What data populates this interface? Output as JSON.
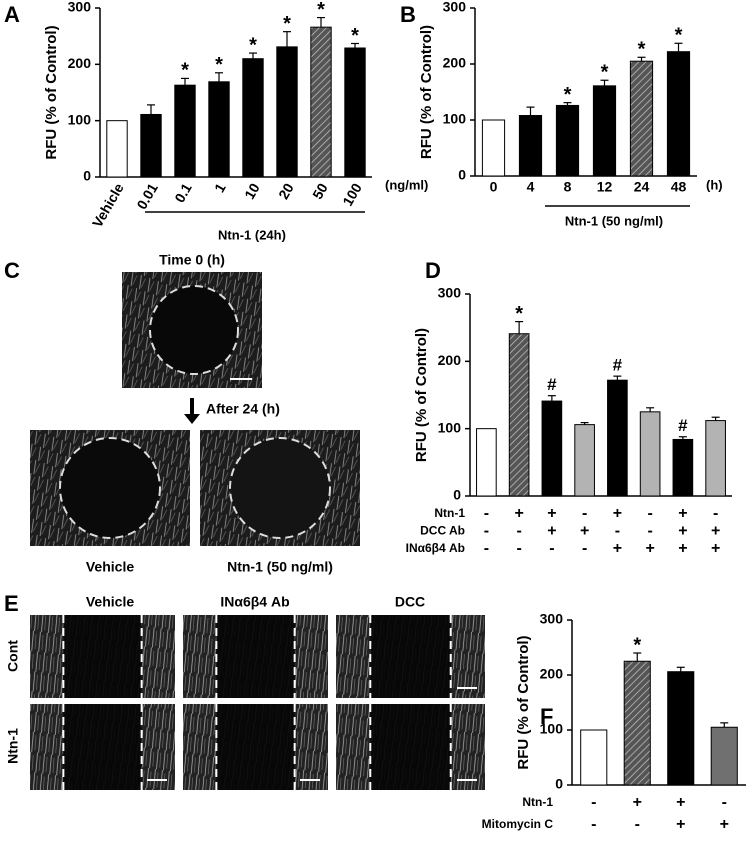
{
  "chart_data": [
    {
      "type": "bar",
      "ylabel": "RFU (% of Control)",
      "categories": [
        "Vehicle",
        "0.01",
        "0.1",
        "1",
        "10",
        "20",
        "50",
        "100"
      ],
      "values": [
        100,
        111,
        163,
        169,
        210,
        231,
        266,
        229
      ],
      "errors": [
        null,
        17,
        12,
        16,
        10,
        27,
        17,
        8
      ],
      "markers": [
        null,
        null,
        "*",
        "*",
        "*",
        "*",
        "*",
        "*"
      ],
      "colors": [
        "#ffffff",
        "#000000",
        "#000000",
        "#000000",
        "#000000",
        "#000000",
        "hatched",
        "#000000"
      ],
      "x_unit": "(ng/ml)",
      "group_label": "Ntn-1 (24h)",
      "ylim": [
        0,
        300
      ],
      "yticks": [
        0,
        100,
        200,
        300
      ]
    },
    {
      "type": "bar",
      "ylabel": "RFU (% of Control)",
      "categories": [
        "0",
        "4",
        "8",
        "12",
        "24",
        "48"
      ],
      "values": [
        100,
        108,
        126,
        161,
        205,
        222
      ],
      "errors": [
        null,
        15,
        5,
        10,
        7,
        15
      ],
      "markers": [
        null,
        null,
        "*",
        "*",
        "*",
        "*"
      ],
      "colors": [
        "#ffffff",
        "#000000",
        "#000000",
        "#000000",
        "hatched",
        "#000000"
      ],
      "x_unit": "(h)",
      "group_label": "Ntn-1 (50 ng/ml)",
      "ylim": [
        0,
        300
      ],
      "yticks": [
        0,
        100,
        200,
        300
      ]
    },
    {
      "type": "bar",
      "ylabel": "RFU (% of Control)",
      "values": [
        100,
        241,
        141,
        106,
        172,
        125,
        84,
        112
      ],
      "errors": [
        null,
        18,
        8,
        3,
        6,
        6,
        4,
        5
      ],
      "markers": [
        null,
        "*",
        "#",
        null,
        "#",
        null,
        "#",
        null
      ],
      "colors": [
        "#ffffff",
        "hatched",
        "#000000",
        "#b3b3b3",
        "#000000",
        "#b3b3b3",
        "#000000",
        "#b3b3b3"
      ],
      "conditions": [
        {
          "label": "Ntn-1",
          "signs": [
            "-",
            "+",
            "+",
            "-",
            "+",
            "-",
            "+",
            "-"
          ]
        },
        {
          "label": "DCC Ab",
          "signs": [
            "-",
            "-",
            "+",
            "+",
            "-",
            "-",
            "+",
            "+"
          ]
        },
        {
          "label": "INα6β4 Ab",
          "signs": [
            "-",
            "-",
            "-",
            "-",
            "+",
            "+",
            "+",
            "+"
          ]
        }
      ],
      "ylim": [
        0,
        300
      ],
      "yticks": [
        0,
        100,
        200,
        300
      ]
    },
    {
      "type": "bar",
      "ylabel": "RFU (% of Control)",
      "values": [
        100,
        225,
        206,
        105
      ],
      "errors": [
        null,
        15,
        8,
        8
      ],
      "markers": [
        null,
        "*",
        null,
        null
      ],
      "colors": [
        "#ffffff",
        "hatched",
        "#000000",
        "#707070"
      ],
      "conditions": [
        {
          "label": "Ntn-1",
          "signs": [
            "-",
            "+",
            "+",
            "-"
          ]
        },
        {
          "label": "Mitomycin C",
          "signs": [
            "-",
            "-",
            "+",
            "+"
          ]
        }
      ],
      "ylim": [
        0,
        300
      ],
      "yticks": [
        0,
        100,
        200,
        300
      ]
    }
  ],
  "figure": {
    "panel_labels": [
      "A",
      "B",
      "C",
      "D",
      "E",
      "F"
    ],
    "c": {
      "top_title": "Time  0 (h)",
      "arrow_label": "After 24 (h)",
      "left_caption": "Vehicle",
      "right_caption": "Ntn-1 (50 ng/ml)"
    },
    "e": {
      "columns": [
        "Vehicle",
        "INα6β4 Ab",
        "DCC"
      ],
      "rows": [
        "Cont",
        "Ntn-1"
      ]
    }
  }
}
